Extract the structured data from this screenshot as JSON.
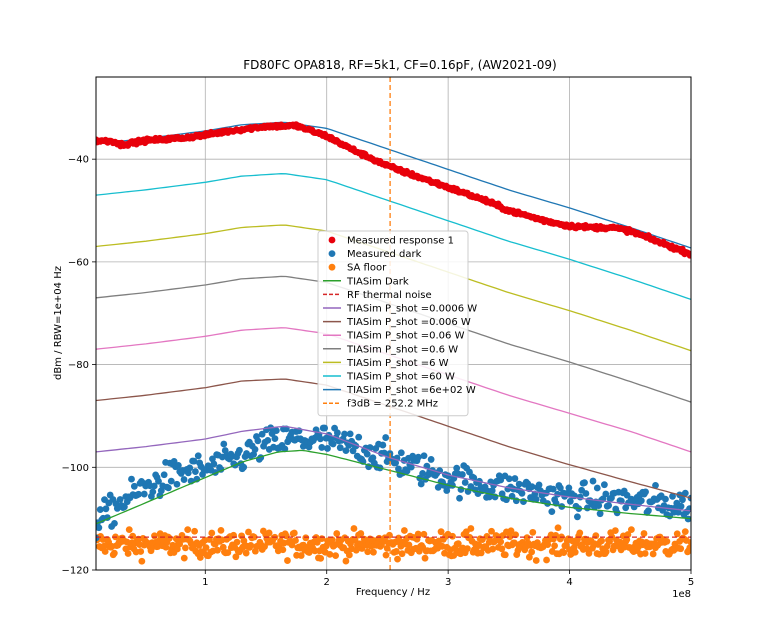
{
  "chart_data": {
    "type": "line",
    "title": "FD80FC OPA818, RF=5k1, CF=0.16pF, (AW2021-09)",
    "xlabel": "Frequency / Hz",
    "ylabel": "dBm / RBW=1e+04 Hz",
    "x_offset_label": "1e8",
    "xlim": [
      10000000.0,
      500000000.0
    ],
    "ylim": [
      -120,
      -24
    ],
    "grid": true,
    "legend_position": "center",
    "x_ticks": [
      {
        "value": 100000000.0,
        "label": "1"
      },
      {
        "value": 200000000.0,
        "label": "2"
      },
      {
        "value": 300000000.0,
        "label": "3"
      },
      {
        "value": 400000000.0,
        "label": "4"
      },
      {
        "value": 500000000.0,
        "label": "5"
      }
    ],
    "y_ticks": [
      {
        "value": -120,
        "label": "−120"
      },
      {
        "value": -100,
        "label": "−100"
      },
      {
        "value": -80,
        "label": "−80"
      },
      {
        "value": -60,
        "label": "−60"
      },
      {
        "value": -40,
        "label": "−40"
      }
    ],
    "series": [
      {
        "name": "Measured response 1",
        "kind": "scatter",
        "color": "#e8000b",
        "x": [
          10000000.0,
          25000000.0,
          30000000.0,
          50000000.0,
          80000000.0,
          100000000.0,
          120000000.0,
          150000000.0,
          175000000.0,
          200000000.0,
          220000000.0,
          250000000.0,
          270000000.0,
          300000000.0,
          330000000.0,
          350000000.0,
          380000000.0,
          400000000.0,
          420000000.0,
          435000000.0,
          450000000.0,
          470000000.0,
          500000000.0
        ],
        "y": [
          -36.4,
          -36.5,
          -37.2,
          -36.4,
          -35.9,
          -35.3,
          -34.5,
          -33.6,
          -33.5,
          -35.5,
          -38.0,
          -41.3,
          -43.0,
          -45.5,
          -48.0,
          -50.0,
          -52.0,
          -53.0,
          -53.3,
          -53.3,
          -54.0,
          -55.8,
          -58.5
        ]
      },
      {
        "name": "Measured dark",
        "kind": "scatter",
        "color": "#1f77b4",
        "x": [
          10000000.0,
          30000000.0,
          50000000.0,
          80000000.0,
          100000000.0,
          130000000.0,
          150000000.0,
          175000000.0,
          200000000.0,
          230000000.0,
          260000000.0,
          300000000.0,
          330000000.0,
          360000000.0,
          400000000.0,
          450000000.0,
          500000000.0
        ],
        "y": [
          -111.0,
          -107.0,
          -104.0,
          -101.0,
          -100.5,
          -98.0,
          -95.5,
          -94.5,
          -94.8,
          -96.5,
          -99.0,
          -102.0,
          -103.5,
          -104.5,
          -106.0,
          -106.5,
          -107.5
        ]
      },
      {
        "name": "SA floor",
        "kind": "scatter",
        "color": "#ff7f0e",
        "x": [
          10000000.0,
          100000000.0,
          200000000.0,
          300000000.0,
          400000000.0,
          500000000.0
        ],
        "y": [
          -115.0,
          -115.0,
          -115.0,
          -115.0,
          -115.0,
          -115.0
        ]
      },
      {
        "name": "TIASim Dark",
        "kind": "line",
        "color": "#2ca02c",
        "x": [
          10000000.0,
          50000000.0,
          100000000.0,
          130000000.0,
          160000000.0,
          180000000.0,
          200000000.0,
          250000000.0,
          300000000.0,
          350000000.0,
          400000000.0,
          450000000.0,
          500000000.0
        ],
        "y": [
          -111.0,
          -107.0,
          -102.0,
          -99.0,
          -97.0,
          -96.7,
          -97.5,
          -100.5,
          -103.5,
          -106.0,
          -107.8,
          -109.0,
          -110.0
        ]
      },
      {
        "name": "RF thermal noise",
        "kind": "dashed",
        "color": "#d62728",
        "x": [
          10000000.0,
          500000000.0
        ],
        "y": [
          -113.6,
          -113.6
        ]
      },
      {
        "name": "TIASim P_shot =0.0006 W",
        "kind": "line",
        "color": "#9467bd",
        "x": [
          10000000.0,
          50000000.0,
          100000000.0,
          130000000.0,
          165000000.0,
          200000000.0,
          250000000.0,
          300000000.0,
          350000000.0,
          400000000.0,
          450000000.0,
          500000000.0
        ],
        "y": [
          -97.0,
          -96.0,
          -94.5,
          -93.0,
          -92.0,
          -93.5,
          -98.0,
          -101.5,
          -104.0,
          -105.8,
          -107.2,
          -108.5
        ]
      },
      {
        "name": "TIASim P_shot =0.006 W",
        "kind": "line",
        "color": "#8c564b",
        "x": [
          10000000.0,
          50000000.0,
          100000000.0,
          130000000.0,
          165000000.0,
          200000000.0,
          250000000.0,
          300000000.0,
          350000000.0,
          400000000.0,
          450000000.0,
          500000000.0
        ],
        "y": [
          -87.0,
          -86.0,
          -84.5,
          -83.2,
          -82.8,
          -84.0,
          -88.0,
          -92.0,
          -96.0,
          -99.5,
          -102.8,
          -106.0
        ]
      },
      {
        "name": "TIASim P_shot =0.06 W",
        "kind": "line",
        "color": "#e377c2",
        "x": [
          10000000.0,
          50000000.0,
          100000000.0,
          130000000.0,
          165000000.0,
          200000000.0,
          250000000.0,
          300000000.0,
          350000000.0,
          400000000.0,
          450000000.0,
          500000000.0
        ],
        "y": [
          -77.0,
          -76.0,
          -74.5,
          -73.3,
          -72.8,
          -74.0,
          -78.0,
          -82.0,
          -86.0,
          -89.5,
          -93.0,
          -97.0
        ]
      },
      {
        "name": "TIASim P_shot =0.6 W",
        "kind": "line",
        "color": "#7f7f7f",
        "x": [
          10000000.0,
          50000000.0,
          100000000.0,
          130000000.0,
          165000000.0,
          200000000.0,
          250000000.0,
          300000000.0,
          350000000.0,
          400000000.0,
          450000000.0,
          500000000.0
        ],
        "y": [
          -67.0,
          -66.0,
          -64.5,
          -63.3,
          -62.8,
          -64.0,
          -68.0,
          -72.0,
          -76.0,
          -79.5,
          -83.3,
          -87.3
        ]
      },
      {
        "name": "TIASim P_shot =6 W",
        "kind": "line",
        "color": "#bcbd22",
        "x": [
          10000000.0,
          50000000.0,
          100000000.0,
          130000000.0,
          165000000.0,
          200000000.0,
          250000000.0,
          300000000.0,
          350000000.0,
          400000000.0,
          450000000.0,
          500000000.0
        ],
        "y": [
          -57.0,
          -56.0,
          -54.5,
          -53.3,
          -52.8,
          -54.0,
          -58.0,
          -62.0,
          -66.0,
          -69.5,
          -73.3,
          -77.3
        ]
      },
      {
        "name": "TIASim P_shot =60 W",
        "kind": "line",
        "color": "#17becf",
        "x": [
          10000000.0,
          50000000.0,
          100000000.0,
          130000000.0,
          165000000.0,
          200000000.0,
          250000000.0,
          300000000.0,
          350000000.0,
          400000000.0,
          450000000.0,
          500000000.0
        ],
        "y": [
          -47.0,
          -46.0,
          -44.5,
          -43.3,
          -42.8,
          -44.0,
          -48.0,
          -52.0,
          -56.0,
          -59.5,
          -63.3,
          -67.3
        ]
      },
      {
        "name": "TIASim P_shot =6e+02 W",
        "kind": "line",
        "color": "#1f77b4",
        "x": [
          10000000.0,
          50000000.0,
          100000000.0,
          130000000.0,
          165000000.0,
          200000000.0,
          250000000.0,
          300000000.0,
          350000000.0,
          400000000.0,
          450000000.0,
          500000000.0
        ],
        "y": [
          -37.0,
          -36.0,
          -34.5,
          -33.3,
          -32.8,
          -34.0,
          -38.0,
          -42.0,
          -46.0,
          -49.5,
          -53.3,
          -57.3
        ]
      }
    ],
    "vlines": [
      {
        "name": "f3dB = 252.2 MHz",
        "x": 252200000.0,
        "color": "#ff7f0e"
      }
    ]
  }
}
